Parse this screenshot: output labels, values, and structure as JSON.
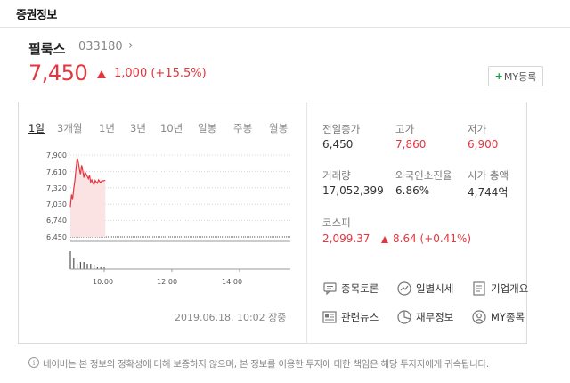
{
  "section": {
    "title": "증권정보"
  },
  "stock": {
    "name": "필룩스",
    "code": "033180",
    "code_chevron": "›",
    "price": "7,450",
    "change": "1,000 (+15.5%)",
    "up_color": "#e3363e",
    "down_color": "#2d6fd1"
  },
  "my_button": {
    "plus": "+",
    "label": "MY등록"
  },
  "tabs": [
    {
      "label": "1일",
      "active": true
    },
    {
      "label": "3개월"
    },
    {
      "label": "1년"
    },
    {
      "label": "3년"
    },
    {
      "label": "10년"
    },
    {
      "label": "일봉"
    },
    {
      "label": "주봉"
    },
    {
      "label": "월봉"
    }
  ],
  "chart": {
    "y_ticks": [
      "7,900",
      "7,610",
      "7,320",
      "7,030",
      "6,740",
      "6,450"
    ],
    "x_ticks": [
      "10:00",
      "12:00",
      "14:00"
    ]
  },
  "chart_data": {
    "type": "area",
    "x_unit": "time",
    "x": [
      "09:00",
      "09:02",
      "09:04",
      "09:06",
      "09:08",
      "09:10",
      "09:12",
      "09:14",
      "09:16",
      "09:18",
      "09:20",
      "09:22",
      "09:24",
      "09:26",
      "09:28",
      "09:30",
      "09:32",
      "09:34",
      "09:36",
      "09:38",
      "09:40",
      "09:42",
      "09:44",
      "09:46",
      "09:48",
      "09:50",
      "09:52",
      "09:54",
      "09:56",
      "09:58",
      "10:00",
      "10:02"
    ],
    "y": [
      6980,
      7200,
      7120,
      7300,
      7450,
      7650,
      7840,
      7780,
      7650,
      7560,
      7720,
      7620,
      7500,
      7600,
      7560,
      7520,
      7480,
      7540,
      7420,
      7460,
      7400,
      7380,
      7450,
      7420,
      7400,
      7460,
      7430,
      7410,
      7450,
      7440,
      7450,
      7450
    ],
    "volume": [
      10,
      3,
      2,
      6,
      4,
      8,
      3,
      5,
      2,
      4,
      3,
      2,
      4,
      3,
      2,
      3,
      2,
      2,
      3,
      2,
      2,
      2,
      2,
      2,
      1,
      1,
      1,
      1,
      1,
      1,
      1,
      1
    ],
    "previous_close": 6450,
    "ylim": [
      6450,
      7900
    ],
    "xlim": [
      "09:00",
      "15:30"
    ],
    "x_ticks": [
      "10:00",
      "12:00",
      "14:00"
    ],
    "y_ticks": [
      7900,
      7610,
      7320,
      7030,
      6740,
      6450
    ],
    "line_color": "#e3363e",
    "fill_color": "#fbe3e4"
  },
  "timestamp": {
    "text": "2019.06.18. 10:02 장중"
  },
  "info": {
    "prev_close": {
      "label": "전일종가",
      "value": "6,450"
    },
    "high": {
      "label": "고가",
      "value": "7,860"
    },
    "low": {
      "label": "저가",
      "value": "6,900"
    },
    "volume": {
      "label": "거래량",
      "value": "17,052,399"
    },
    "foreign": {
      "label": "외국인소진율",
      "value": "6.86%"
    },
    "market_cap": {
      "label": "시가 총액",
      "value": "4,744억"
    }
  },
  "kospi": {
    "label": "코스피",
    "value": "2,099.37",
    "change": "8.64 (+0.41%)"
  },
  "links": [
    {
      "label": "종목토론",
      "icon": "chat-icon"
    },
    {
      "label": "일별시세",
      "icon": "trend-icon"
    },
    {
      "label": "기업개요",
      "icon": "document-icon"
    },
    {
      "label": "관련뉴스",
      "icon": "news-icon"
    },
    {
      "label": "재무정보",
      "icon": "pie-chart-icon"
    },
    {
      "label": "MY종목",
      "icon": "user-icon"
    }
  ],
  "disclaimer": {
    "icon": "i",
    "text": "네이버는 본 정보의 정확성에 대해 보증하지 않으며, 본 정보를 이용한 투자에 대한 책임은 해당 투자자에게 귀속됩니다."
  }
}
